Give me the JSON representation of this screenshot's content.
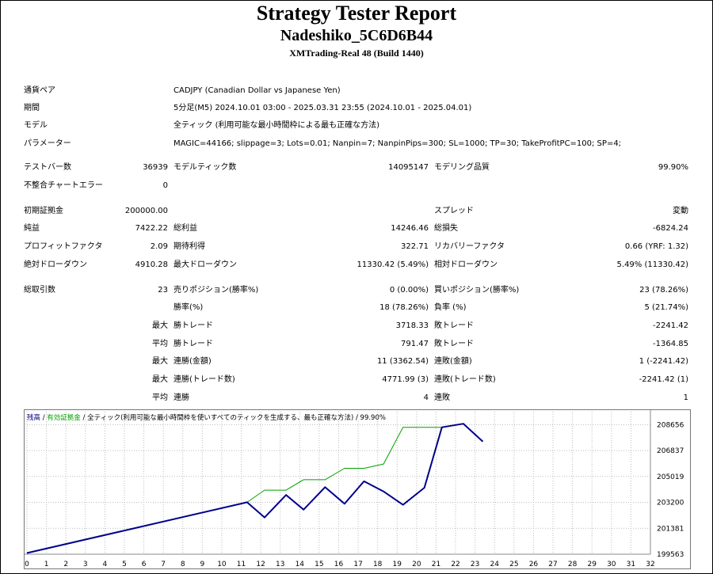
{
  "header": {
    "title": "Strategy Tester Report",
    "ea_name": "Nadeshiko_5C6D6B44",
    "server": "XMTrading-Real 48 (Build 1440)"
  },
  "settings": {
    "symbol_label": "通貨ペア",
    "symbol_value": "CADJPY (Canadian Dollar vs Japanese Yen)",
    "period_label": "期間",
    "period_value": "5分足(M5) 2024.10.01 03:00 - 2025.03.31 23:55 (2024.10.01 - 2025.04.01)",
    "model_label": "モデル",
    "model_value": "全ティック (利用可能な最小時間枠による最も正確な方法)",
    "params_label": "パラメーター",
    "params_value": "MAGIC=44166; slippage=3; Lots=0.01; Nanpin=7; NanpinPips=300; SL=1000; TP=30; TakeProfitPC=100; SP=4;"
  },
  "stats": {
    "bars_label": "テストバー数",
    "bars_value": "36939",
    "ticks_label": "モデルティック数",
    "ticks_value": "14095147",
    "quality_label": "モデリング品質",
    "quality_value": "99.90%",
    "mismatch_label": "不整合チャートエラー",
    "mismatch_value": "0",
    "deposit_label": "初期証拠金",
    "deposit_value": "200000.00",
    "spread_label": "スプレッド",
    "spread_value": "変動",
    "net_label": "純益",
    "net_value": "7422.22",
    "gross_profit_label": "総利益",
    "gross_profit_value": "14246.46",
    "gross_loss_label": "総損失",
    "gross_loss_value": "-6824.24",
    "pf_label": "プロフィットファクタ",
    "pf_value": "2.09",
    "payoff_label": "期待利得",
    "payoff_value": "322.71",
    "recovery_label": "リカバリーファクタ",
    "recovery_value": "0.66 (YRF: 1.32)",
    "abs_dd_label": "絶対ドローダウン",
    "abs_dd_value": "4910.28",
    "max_dd_label": "最大ドローダウン",
    "max_dd_value": "11330.42 (5.49%)",
    "rel_dd_label": "相対ドローダウン",
    "rel_dd_value": "5.49% (11330.42)",
    "trades_label": "総取引数",
    "trades_value": "23",
    "short_label": "売りポジション(勝率%)",
    "short_value": "0 (0.00%)",
    "long_label": "買いポジション(勝率%)",
    "long_value": "23 (78.26%)",
    "win_pct_label": "勝率(%)",
    "win_pct_value": "18 (78.26%)",
    "loss_pct_label": "負率 (%)",
    "loss_pct_value": "5 (21.74%)",
    "max_word": "最大",
    "avg_word": "平均",
    "win_trade_label": "勝トレード",
    "loss_trade_label": "敗トレード",
    "max_win_value": "3718.33",
    "max_loss_value": "-2241.42",
    "avg_win_value": "791.47",
    "avg_loss_value": "-1364.85",
    "consec_win_money_label": "連勝(金額)",
    "consec_win_money_value": "11 (3362.54)",
    "consec_loss_money_label": "連敗(金額)",
    "consec_loss_money_value": "1 (-2241.42)",
    "consec_win_trades_label": "連勝(トレード数)",
    "consec_win_trades_value": "4771.99 (3)",
    "consec_loss_trades_label": "連敗(トレード数)",
    "consec_loss_trades_value": "-2241.42 (1)",
    "avg_consec_win_label": "連勝",
    "avg_consec_win_value": "4",
    "avg_consec_loss_label": "連敗",
    "avg_consec_loss_value": "1"
  },
  "chart_legend": {
    "balance": "残高",
    "sep1": " / ",
    "equity": "有効証拠金",
    "sep2": " / ",
    "rest": "全ティック(利用可能な最小時間枠を使いすべてのティックを生成する、最も正確な方法) / 99.90%"
  },
  "chart_data": {
    "type": "line",
    "series": [
      {
        "name": "残高",
        "color": "#00008b",
        "x": [
          0,
          11.3,
          12.2,
          13.3,
          14.2,
          15.3,
          16.3,
          17.3,
          18.3,
          19.3,
          20.4,
          21.3,
          22.4,
          23.4
        ],
        "y": [
          199645,
          203210,
          202140,
          203720,
          202690,
          204270,
          203100,
          204680,
          203970,
          203030,
          204230,
          208470,
          208720,
          207470
        ]
      },
      {
        "name": "有効証拠金",
        "color": "#00a000",
        "x": [
          0,
          11.3,
          12.2,
          13.3,
          14.2,
          15.3,
          16.3,
          17.3,
          18.3,
          19.3,
          20.4,
          21.3
        ],
        "y": [
          199645,
          203210,
          204060,
          204060,
          204790,
          204790,
          205590,
          205590,
          205890,
          208470,
          208470,
          208470
        ]
      }
    ],
    "x_ticks": [
      "0",
      "1",
      "2",
      "3",
      "4",
      "5",
      "6",
      "7",
      "8",
      "9",
      "10",
      "11",
      "12",
      "13",
      "14",
      "15",
      "16",
      "17",
      "18",
      "19",
      "20",
      "21",
      "22",
      "23",
      "24",
      "25",
      "26",
      "27",
      "28",
      "29",
      "30",
      "31",
      "32"
    ],
    "y_ticks": [
      "199563",
      "201381",
      "203200",
      "205019",
      "206837",
      "208656"
    ],
    "xlim": [
      0,
      32
    ],
    "ylim": [
      199563,
      209565
    ],
    "grid": true
  }
}
